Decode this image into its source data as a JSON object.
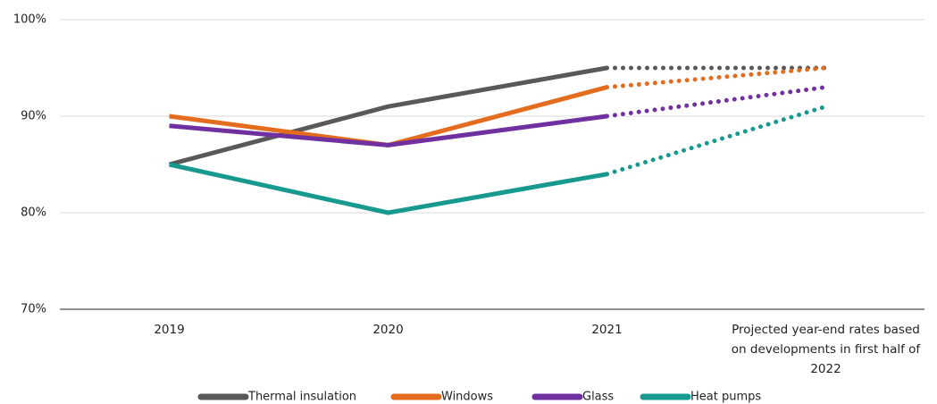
{
  "chart_data": {
    "type": "line",
    "categories": [
      "2019",
      "2020",
      "2021",
      "Projected year-end rates based on developments in first half of 2022"
    ],
    "series": [
      {
        "name": "Thermal insulation",
        "color": "#595959",
        "values": [
          85,
          91,
          95,
          95
        ]
      },
      {
        "name": "Windows",
        "color": "#e46c1f",
        "values": [
          90,
          87,
          93,
          95
        ]
      },
      {
        "name": "Glass",
        "color": "#7030a0",
        "values": [
          89,
          87,
          90,
          93
        ]
      },
      {
        "name": "Heat pumps",
        "color": "#17998f",
        "values": [
          85,
          80,
          84,
          91
        ]
      }
    ],
    "ylim": [
      70,
      100
    ],
    "yticks": [
      {
        "value": 70,
        "label": "70%"
      },
      {
        "value": 80,
        "label": "80%"
      },
      {
        "value": 90,
        "label": "90%"
      },
      {
        "value": 100,
        "label": "100%"
      }
    ],
    "grid": true,
    "last_segment_style": "dotted",
    "legend": "bottom"
  }
}
